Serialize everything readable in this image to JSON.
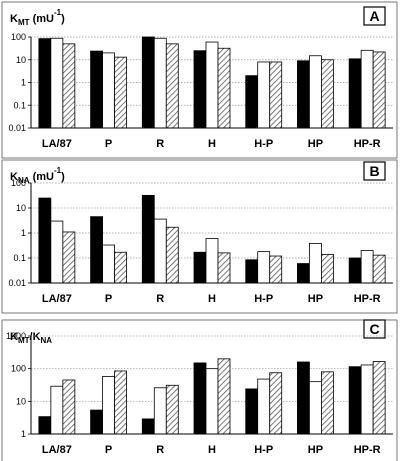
{
  "colors": {
    "series_1": "#000000",
    "series_2": "#ffffff",
    "series_3_hatch": "#555555",
    "gridline": "#999999",
    "axis": "#000000"
  },
  "chart_data": [
    {
      "type": "bar",
      "panel": "A",
      "title": "K_MT (mU^-1)",
      "y_scale": "log",
      "ylim": [
        0.01,
        100
      ],
      "yticks": [
        "0.01",
        "0.1",
        "1",
        "10",
        "100"
      ],
      "categories": [
        "LA/87",
        "P",
        "R",
        "H",
        "H-P",
        "HP",
        "HP-R"
      ],
      "series": [
        {
          "fill": "black",
          "values": [
            85,
            24,
            100,
            25,
            2,
            9,
            11
          ]
        },
        {
          "fill": "white",
          "values": [
            88,
            20,
            88,
            60,
            8,
            15,
            26
          ]
        },
        {
          "fill": "hatched",
          "values": [
            50,
            13,
            50,
            32,
            8,
            10,
            22
          ]
        }
      ]
    },
    {
      "type": "bar",
      "panel": "B",
      "title": "K_NA (mU^-1)",
      "y_scale": "log",
      "ylim": [
        0.01,
        100
      ],
      "yticks": [
        "0.01",
        "0.1",
        "1",
        "10",
        "100"
      ],
      "categories": [
        "LA/87",
        "P",
        "R",
        "H",
        "H-P",
        "HP",
        "HP-R"
      ],
      "series": [
        {
          "fill": "black",
          "values": [
            25,
            4.5,
            32,
            0.17,
            0.085,
            0.06,
            0.1
          ]
        },
        {
          "fill": "white",
          "values": [
            3,
            0.33,
            3.6,
            0.6,
            0.18,
            0.38,
            0.2
          ]
        },
        {
          "fill": "hatched",
          "values": [
            1.1,
            0.17,
            1.7,
            0.16,
            0.12,
            0.14,
            0.13
          ]
        }
      ]
    },
    {
      "type": "bar",
      "panel": "C",
      "title": "K_MT/K_NA",
      "y_scale": "log",
      "ylim": [
        1,
        1000
      ],
      "yticks": [
        "1",
        "10",
        "100",
        "1000"
      ],
      "categories": [
        "LA/87",
        "P",
        "R",
        "H",
        "H-P",
        "HP",
        "HP-R"
      ],
      "series": [
        {
          "fill": "black",
          "values": [
            3.4,
            5.4,
            2.9,
            150,
            24,
            160,
            115
          ]
        },
        {
          "fill": "white",
          "values": [
            29,
            58,
            26,
            100,
            48,
            40,
            130
          ]
        },
        {
          "fill": "hatched",
          "values": [
            45,
            85,
            31,
            200,
            75,
            80,
            165
          ]
        }
      ]
    }
  ]
}
